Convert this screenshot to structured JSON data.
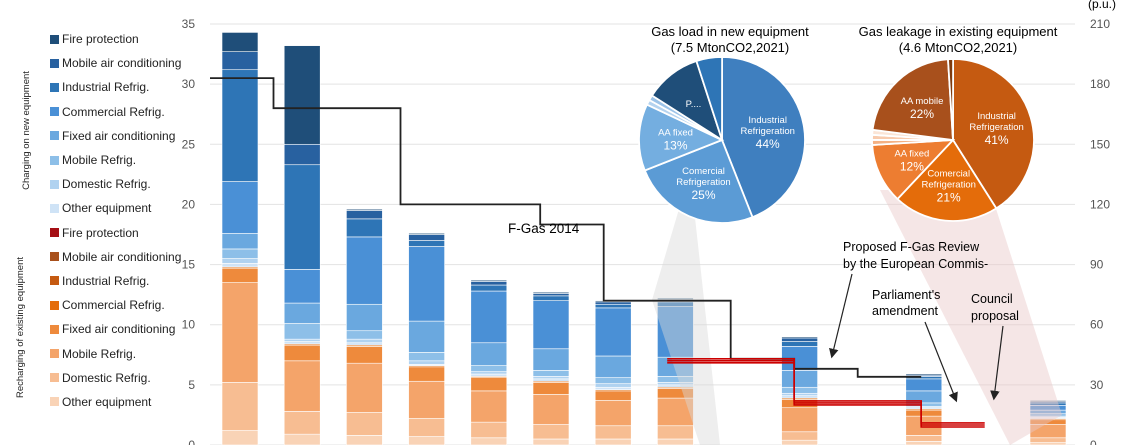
{
  "side_labels": {
    "top": "Charging on new equipment",
    "bottom": "Recharging of existing equipment"
  },
  "right_axis_corner_text": "(p.u.)",
  "annotations": {
    "fgas2014": "F-Gas 2014",
    "proposal_line1": "Proposed F-Gas Review",
    "proposal_line2": "by the European Commis-",
    "parliament_line1": "Parliament's",
    "parliament_line2": "amendment",
    "council_line1": "Council",
    "council_line2": "proposal"
  },
  "legend": {
    "new_equipment": [
      {
        "label": "Fire protection",
        "color": "#1f4e79"
      },
      {
        "label": "Mobile air conditioning",
        "color": "#2861a0"
      },
      {
        "label": "Industrial Refrig.",
        "color": "#2e75b6"
      },
      {
        "label": "Commercial Refrig.",
        "color": "#4a90d6"
      },
      {
        "label": "Fixed air conditioning",
        "color": "#6aa8df"
      },
      {
        "label": "Mobile Refrig.",
        "color": "#8dbfe8"
      },
      {
        "label": "Domestic Refrig.",
        "color": "#b0d2f0"
      },
      {
        "label": "Other equipment",
        "color": "#cfe3f6"
      }
    ],
    "existing_equipment": [
      {
        "label": "Fire protection",
        "color": "#a50f15"
      },
      {
        "label": "Mobile air conditioning",
        "color": "#a8501c"
      },
      {
        "label": "Industrial Refrig.",
        "color": "#c55a11"
      },
      {
        "label": "Commercial Refrig.",
        "color": "#e46c0a"
      },
      {
        "label": "Fixed air conditioning",
        "color": "#ee8a3c"
      },
      {
        "label": "Mobile Refrig.",
        "color": "#f4a46a"
      },
      {
        "label": "Domestic Refrig.",
        "color": "#f7bd92"
      },
      {
        "label": "Other equipment",
        "color": "#f9d3b6"
      }
    ]
  },
  "chart_data": {
    "type": "bar",
    "stacked": true,
    "left_axis": {
      "ylim": [
        0,
        35
      ],
      "ticks": [
        "0",
        "5",
        "10",
        "15",
        "20",
        "25",
        "30",
        "35"
      ]
    },
    "right_axis": {
      "ylim": [
        0,
        210
      ],
      "ticks": [
        "0",
        "30",
        "60",
        "90",
        "120",
        "150",
        "180",
        "210"
      ]
    },
    "bars": [
      {
        "existing": [
          1.2,
          4.0,
          8.3,
          1.2,
          0.1
        ],
        "new": [
          0.3,
          0.4,
          0.8,
          1.3,
          4.3,
          9.3,
          1.5,
          1.6
        ]
      },
      {
        "existing": [
          0.9,
          1.9,
          4.2,
          1.3,
          0.1
        ],
        "new": [
          0.2,
          0.2,
          1.3,
          1.7,
          2.8,
          8.7,
          1.7,
          8.2
        ]
      },
      {
        "existing": [
          0.8,
          1.9,
          4.1,
          1.4,
          0.1
        ],
        "new": [
          0.2,
          0.3,
          0.7,
          2.2,
          5.6,
          1.5,
          0.7,
          0.1
        ]
      },
      {
        "existing": [
          0.7,
          1.5,
          3.1,
          1.2,
          0.1
        ],
        "new": [
          0.1,
          0.3,
          0.7,
          2.6,
          6.2,
          0.5,
          0.5,
          0.1
        ]
      },
      {
        "existing": [
          0.6,
          1.3,
          2.6,
          1.1,
          0.1
        ],
        "new": [
          0.2,
          0.2,
          0.5,
          1.9,
          4.3,
          0.5,
          0.3,
          0.1
        ]
      },
      {
        "existing": [
          0.5,
          1.2,
          2.5,
          1.0,
          0.1
        ],
        "new": [
          0.2,
          0.2,
          0.5,
          1.8,
          4.0,
          0.4,
          0.2,
          0.1
        ]
      },
      {
        "existing": [
          0.5,
          1.1,
          2.1,
          0.8,
          0.1
        ],
        "new": [
          0.2,
          0.3,
          0.5,
          1.8,
          4.0,
          0.3,
          0.2,
          0.1
        ]
      },
      {
        "existing": [
          0.5,
          1.1,
          2.3,
          0.8,
          0.1
        ],
        "new": [
          0.2,
          0.2,
          0.5,
          1.6,
          4.2,
          0.4,
          0.2,
          0.1
        ]
      },
      {
        "existing": [
          0.4,
          0.7,
          2.0,
          0.7,
          0.1
        ],
        "new": [
          0.2,
          0.2,
          0.5,
          1.4,
          2.0,
          0.4,
          0.3,
          0.1
        ]
      },
      {
        "existing": [
          0.3,
          0.5,
          1.6,
          0.5,
          0.1
        ],
        "new": [
          0.1,
          0.1,
          0.3,
          1.0,
          1.0,
          0.2,
          0.1,
          0.1
        ]
      },
      {
        "existing": [
          0.2,
          0.4,
          1.1,
          0.4,
          0.1
        ],
        "new": [
          0.1,
          0.1,
          0.2,
          0.3,
          0.4,
          0.2,
          0.1,
          0.1
        ]
      }
    ],
    "lines": [
      {
        "name": "F-Gas 2014",
        "color": "#222222",
        "points": [
          [
            0.8,
            183
          ],
          [
            1.8,
            183
          ],
          [
            1.8,
            168
          ],
          [
            3.8,
            168
          ],
          [
            3.8,
            120
          ],
          [
            6.0,
            120
          ],
          [
            6.0,
            110
          ],
          [
            7.0,
            110
          ],
          [
            7.0,
            72
          ],
          [
            9.0,
            72
          ],
          [
            9.0,
            43
          ],
          [
            10.0,
            43
          ],
          [
            10.0,
            38
          ],
          [
            11.0,
            38
          ],
          [
            11.0,
            34
          ],
          [
            12.0,
            34
          ]
        ]
      },
      {
        "name": "Proposed F-Gas Review by the European Commission",
        "color": "#cc0000",
        "points": [
          [
            8.0,
            43
          ],
          [
            10.0,
            43
          ],
          [
            10.0,
            22
          ],
          [
            12.0,
            22
          ],
          [
            12.0,
            11
          ],
          [
            13.0,
            11
          ]
        ]
      },
      {
        "name": "Parliament's amendment",
        "color": "#cc0000",
        "points": [
          [
            8.0,
            41
          ],
          [
            10.0,
            41
          ],
          [
            10.0,
            21
          ],
          [
            12.0,
            21
          ],
          [
            12.0,
            10
          ],
          [
            13.0,
            10
          ]
        ]
      },
      {
        "name": "Council proposal",
        "color": "#cc0000",
        "points": [
          [
            8.0,
            42
          ],
          [
            10.0,
            42
          ],
          [
            10.0,
            20
          ],
          [
            12.0,
            20
          ],
          [
            12.0,
            9
          ],
          [
            13.0,
            9
          ]
        ]
      }
    ],
    "pies": [
      {
        "title_line1": "Gas load in new equipment",
        "title_line2": "(7.5 MtonCO2,2021)",
        "slices": [
          {
            "label": "Industrial Refrigeration",
            "value": 44,
            "pct_label": "44%",
            "color": "#3f7fbf"
          },
          {
            "label": "Comercial Refrigeration",
            "value": 25,
            "pct_label": "25%",
            "color": "#5b9bd5"
          },
          {
            "label": "AA fixed",
            "value": 13,
            "pct_label": "13%",
            "color": "#74aee0"
          },
          {
            "label": "",
            "value": 1,
            "pct_label": "",
            "color": "#b5d3ef"
          },
          {
            "label": "",
            "value": 1,
            "pct_label": "",
            "color": "#9cc3e8"
          },
          {
            "label": "P....",
            "value": 11,
            "pct_label": "",
            "color": "#1f4e79"
          },
          {
            "label": "",
            "value": 5,
            "pct_label": "",
            "color": "#2e75b6"
          }
        ]
      },
      {
        "title_line1": "Gas leakage in existing equipment",
        "title_line2": "(4.6 MtonCO2,2021)",
        "slices": [
          {
            "label": "Industrial Refrigeration",
            "value": 41,
            "pct_label": "41%",
            "color": "#c55a11"
          },
          {
            "label": "Comercial Refrigeration",
            "value": 21,
            "pct_label": "21%",
            "color": "#e46c0a"
          },
          {
            "label": "AA fixed",
            "value": 12,
            "pct_label": "12%",
            "color": "#ed7d31"
          },
          {
            "label": "",
            "value": 1,
            "pct_label": "",
            "color": "#f4b183"
          },
          {
            "label": "",
            "value": 1,
            "pct_label": "",
            "color": "#f8cbad"
          },
          {
            "label": "",
            "value": 1,
            "pct_label": "",
            "color": "#fbe5d6"
          },
          {
            "label": "AA  mobile",
            "value": 22,
            "pct_label": "22%",
            "color": "#a8501c"
          },
          {
            "label": "",
            "value": 1,
            "pct_label": "",
            "color": "#7f3b0d"
          }
        ]
      }
    ]
  }
}
